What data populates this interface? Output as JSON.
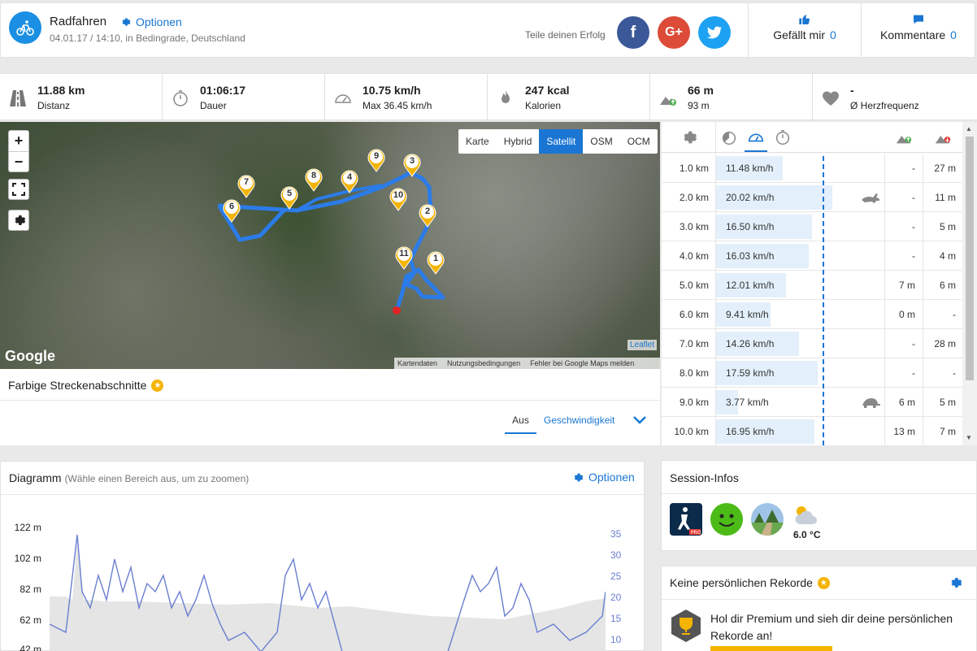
{
  "header": {
    "title": "Radfahren",
    "options_label": "Optionen",
    "meta": "04.01.17 / 14:10, in Bedingrade, Deutschland",
    "share_label": "Teile deinen Erfolg",
    "facebook": "f",
    "googleplus": "G+",
    "like_label": "Gefällt mir",
    "like_count": "0",
    "comments_label": "Kommentare",
    "comments_count": "0"
  },
  "stats": [
    {
      "value": "11.88 km",
      "label": "Distanz",
      "icon": "road-icon"
    },
    {
      "value": "01:06:17",
      "label": "Dauer",
      "icon": "stopwatch-icon"
    },
    {
      "value": "10.75 km/h",
      "label": "Max 36.45 km/h",
      "icon": "speedometer-icon"
    },
    {
      "value": "247 kcal",
      "label": "Kalorien",
      "icon": "flame-icon"
    },
    {
      "value": "66 m",
      "label": "93 m",
      "icon": "elevation-icon"
    },
    {
      "value": "-",
      "label": "Ø Herzfrequenz",
      "icon": "heart-icon"
    }
  ],
  "map": {
    "zoom_in": "+",
    "zoom_out": "−",
    "types": [
      "Karte",
      "Hybrid",
      "Satellit",
      "OSM",
      "OCM"
    ],
    "active_type": "Satellit",
    "google": "Google",
    "leaflet": "Leaflet",
    "attribution": [
      "Kartendaten",
      "Nutzungsbedingungen",
      "Fehler bei Google Maps melden"
    ],
    "markers": [
      "1",
      "2",
      "3",
      "4",
      "5",
      "6",
      "7",
      "8",
      "9",
      "10",
      "11"
    ],
    "route_color": "#2b7be8"
  },
  "farbige": {
    "title": "Farbige Streckenabschnitte",
    "tab_off": "Aus",
    "tab_speed": "Geschwindigkeit"
  },
  "splits": {
    "rows": [
      {
        "km": "1.0 km",
        "speed": "11.48 km/h",
        "up": "-",
        "down": "27 m",
        "speed_value": 11.48
      },
      {
        "km": "2.0 km",
        "speed": "20.02 km/h",
        "up": "-",
        "down": "11 m",
        "speed_value": 20.02,
        "badge": "rabbit-icon"
      },
      {
        "km": "3.0 km",
        "speed": "16.50 km/h",
        "up": "-",
        "down": "5 m",
        "speed_value": 16.5
      },
      {
        "km": "4.0 km",
        "speed": "16.03 km/h",
        "up": "-",
        "down": "4 m",
        "speed_value": 16.03
      },
      {
        "km": "5.0 km",
        "speed": "12.01 km/h",
        "up": "7 m",
        "down": "6 m",
        "speed_value": 12.01
      },
      {
        "km": "6.0 km",
        "speed": "9.41 km/h",
        "up": "0 m",
        "down": "-",
        "speed_value": 9.41
      },
      {
        "km": "7.0 km",
        "speed": "14.26 km/h",
        "up": "-",
        "down": "28 m",
        "speed_value": 14.26
      },
      {
        "km": "8.0 km",
        "speed": "17.59 km/h",
        "up": "-",
        "down": "-",
        "speed_value": 17.59
      },
      {
        "km": "9.0 km",
        "speed": "3.77 km/h",
        "up": "6 m",
        "down": "5 m",
        "speed_value": 3.77,
        "badge": "turtle-icon"
      },
      {
        "km": "10.0 km",
        "speed": "16.95 km/h",
        "up": "13 m",
        "down": "7 m",
        "speed_value": 16.95
      }
    ]
  },
  "diagram": {
    "title": "Diagramm",
    "hint": "(Wähle einen Bereich aus, um zu zoomen)",
    "options_label": "Optionen",
    "y_left": [
      "122 m",
      "102 m",
      "82 m",
      "62 m",
      "42 m"
    ],
    "y_right": [
      "35",
      "30",
      "25",
      "20",
      "15",
      "10"
    ]
  },
  "session": {
    "title": "Session-Infos",
    "temperature": "6.0 °C"
  },
  "records": {
    "title": "Keine persönlichen Rekorde",
    "text": "Hol dir Premium und sieh dir deine persönlichen Rekorde an!"
  }
}
